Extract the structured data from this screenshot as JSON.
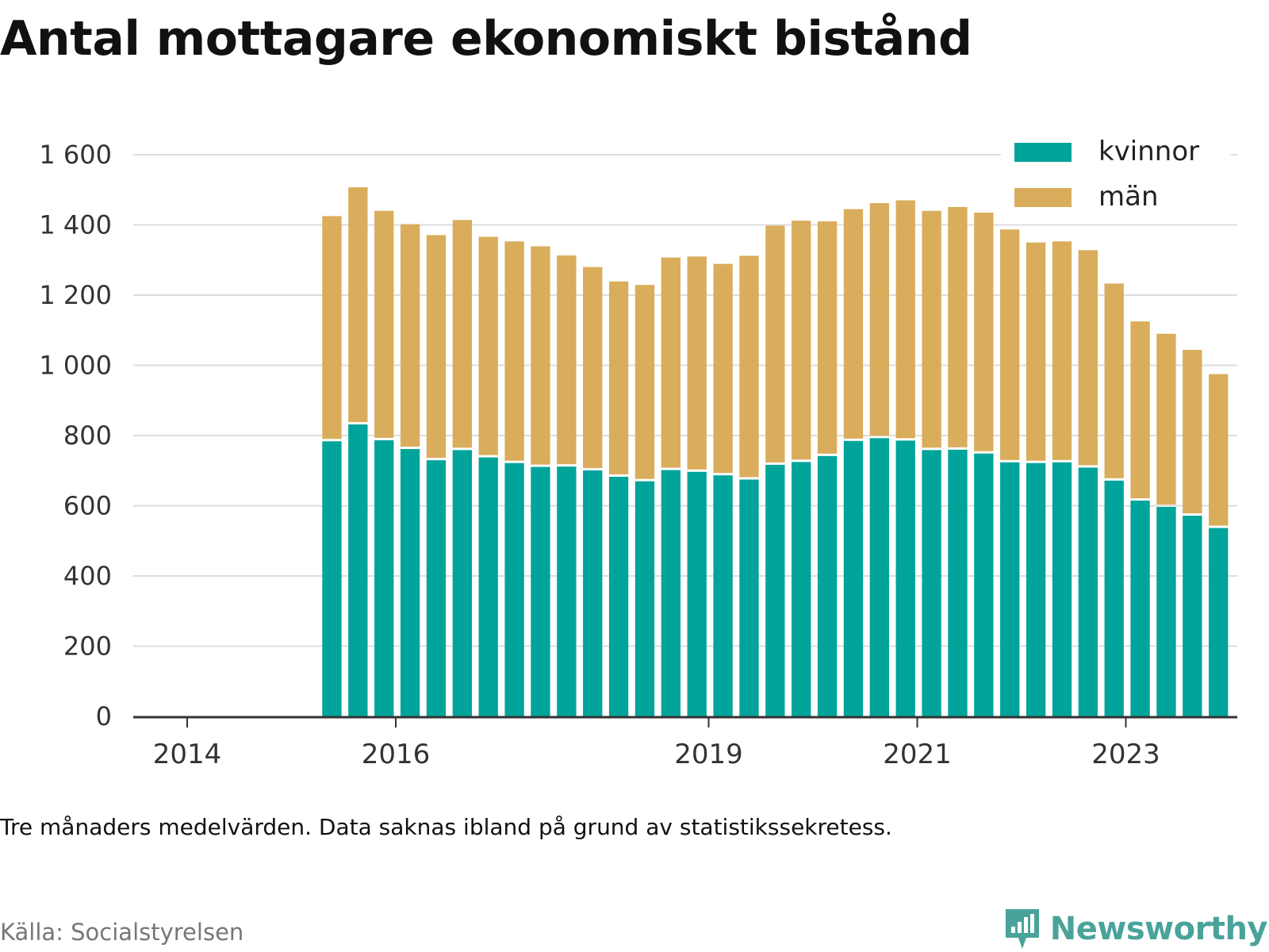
{
  "title": "Antal mottagare ekonomiskt bistånd",
  "note": "Tre månaders medelvärden. Data saknas ibland på grund av statistikssekretess.",
  "source": "Källa: Socialstyrelsen",
  "brand": "Newsworthy",
  "colors": {
    "kvinnor": "#00a49a",
    "man": "#d9ad5b",
    "grid": "#dddddd",
    "axis": "#333333"
  },
  "chart_data": {
    "type": "bar",
    "stacked": true,
    "title": "Antal mottagare ekonomiskt bistånd",
    "xlabel": "",
    "ylabel": "",
    "ylim": [
      0,
      1600
    ],
    "yticks": [
      0,
      200,
      400,
      600,
      800,
      1000,
      1200,
      1400,
      1600
    ],
    "ytick_labels": [
      "0",
      "200",
      "400",
      "600",
      "800",
      "1 000",
      "1 200",
      "1 400",
      "1 600"
    ],
    "xticks": [
      {
        "label": "2014",
        "year": 2014.0
      },
      {
        "label": "2016",
        "year": 2016.0
      },
      {
        "label": "2019",
        "year": 2019.0
      },
      {
        "label": "2021",
        "year": 2021.0
      },
      {
        "label": "2023",
        "year": 2023.0
      }
    ],
    "xlim": [
      2013.5,
      2024.2
    ],
    "grid": true,
    "legend_position": "top-right",
    "periods": [
      2015.0,
      2015.25,
      2015.5,
      2015.75,
      2016.0,
      2016.25,
      2016.5,
      2016.75,
      2017.0,
      2017.25,
      2017.5,
      2017.75,
      2018.0,
      2018.25,
      2018.5,
      2018.75,
      2019.0,
      2019.25,
      2019.5,
      2019.75,
      2020.0,
      2020.25,
      2020.5,
      2020.75,
      2021.0,
      2021.25,
      2021.5,
      2021.75,
      2022.0,
      2022.25,
      2022.5,
      2022.75,
      2023.0,
      2023.25,
      2023.5
    ],
    "series": [
      {
        "name": "kvinnor",
        "color": "#00a49a",
        "values": [
          787,
          835,
          790,
          765,
          733,
          762,
          741,
          725,
          714,
          715,
          704,
          686,
          673,
          705,
          700,
          690,
          678,
          720,
          728,
          745,
          788,
          796,
          789,
          762,
          763,
          752,
          727,
          725,
          727,
          712,
          675,
          618,
          600,
          575,
          540
        ]
      },
      {
        "name": "män",
        "color": "#d9ad5b",
        "values": [
          638,
          672,
          650,
          637,
          638,
          652,
          625,
          628,
          625,
          598,
          576,
          553,
          556,
          602,
          610,
          599,
          634,
          678,
          684,
          665,
          657,
          666,
          681,
          678,
          688,
          683,
          660,
          625,
          626,
          616,
          558,
          507,
          490,
          469,
          435
        ]
      }
    ]
  }
}
